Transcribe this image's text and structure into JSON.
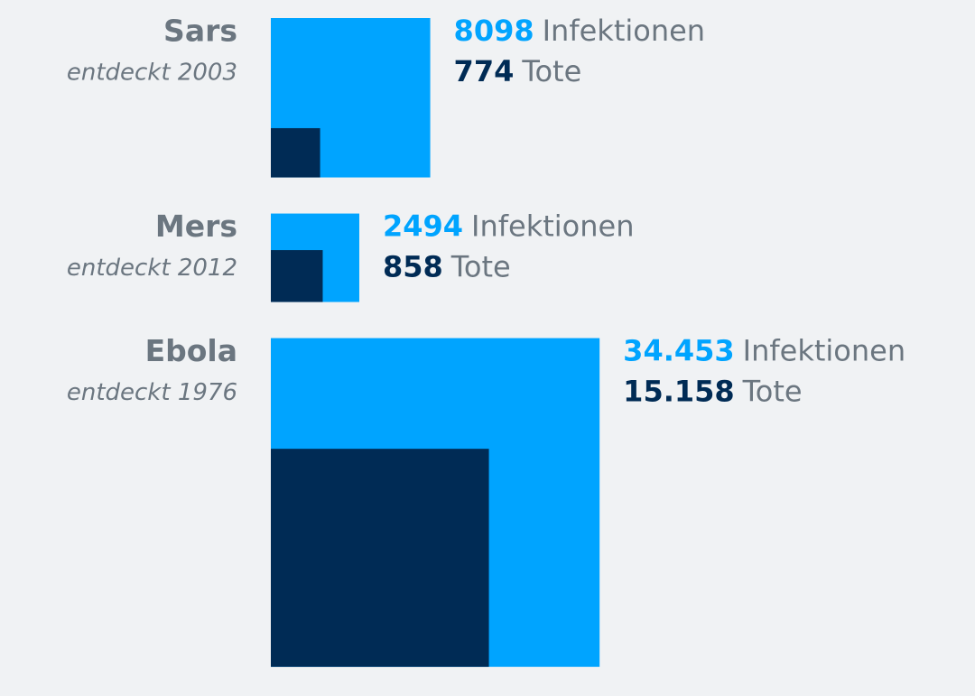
{
  "chart_data": {
    "type": "square",
    "categories": [
      "Sars",
      "Mers",
      "Ebola"
    ],
    "subtitles": [
      "entdeckt 2003",
      "entdeckt 2012",
      "entdeckt 1976"
    ],
    "series": [
      {
        "name": "Infektionen",
        "color": "#00a4ff",
        "values": [
          8098,
          2494,
          34453
        ],
        "value_labels": [
          "8098",
          "2494",
          "34.453"
        ]
      },
      {
        "name": "Tote",
        "color": "#002b55",
        "values": [
          774,
          858,
          15158
        ],
        "value_labels": [
          "774",
          "858",
          "15.158"
        ]
      }
    ]
  }
}
